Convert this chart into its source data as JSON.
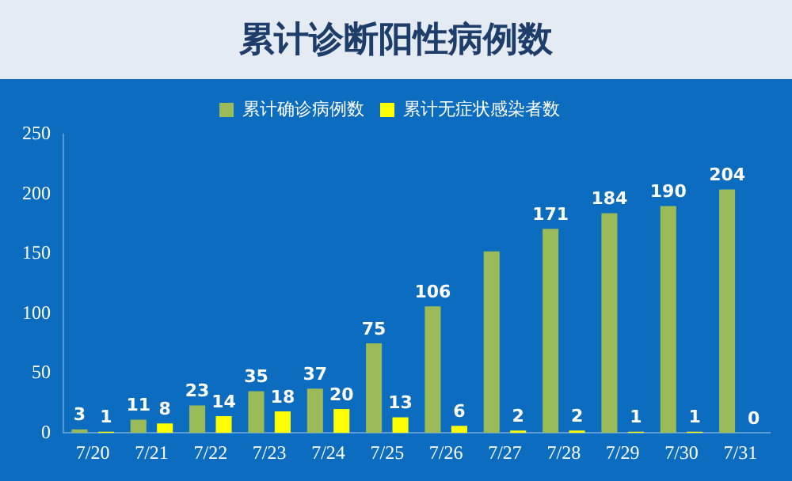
{
  "chart_data": {
    "type": "bar",
    "title": "累计诊断阳性病例数",
    "categories": [
      "7/20",
      "7/21",
      "7/22",
      "7/23",
      "7/24",
      "7/25",
      "7/26",
      "7/27",
      "7/28",
      "7/29",
      "7/30",
      "7/31"
    ],
    "series": [
      {
        "name": "累计确诊病例数",
        "color": "#9bbb59",
        "values": [
          3,
          11,
          23,
          35,
          37,
          75,
          106,
          152,
          171,
          184,
          190,
          204
        ],
        "value_labels": [
          "3",
          "11",
          "23",
          "35",
          "37",
          "75",
          "106",
          null,
          "171",
          "184",
          "190",
          "204"
        ]
      },
      {
        "name": "累计无症状感染者数",
        "color": "#ffff00",
        "values": [
          1,
          8,
          14,
          18,
          20,
          13,
          6,
          2,
          2,
          1,
          1,
          0
        ],
        "value_labels": [
          "1",
          "8",
          "14",
          "18",
          "20",
          "13",
          "6",
          "2",
          "2",
          "1",
          "1",
          "0"
        ]
      }
    ],
    "ylim": [
      0,
      250
    ],
    "yticks": [
      0,
      50,
      100,
      150,
      200,
      250
    ],
    "grid": false,
    "legend": "top"
  }
}
